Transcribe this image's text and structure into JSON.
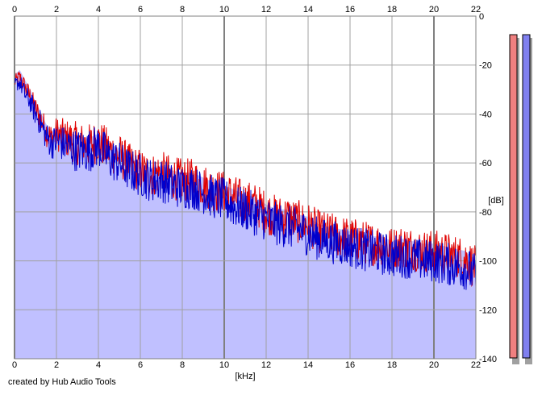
{
  "chart_data": {
    "type": "area",
    "xlabel": "[kHz]",
    "ylabel": "[dB]",
    "xlim": [
      0,
      22
    ],
    "ylim": [
      -140,
      0
    ],
    "x_ticks": [
      0,
      2,
      4,
      6,
      8,
      10,
      12,
      14,
      16,
      18,
      20,
      22
    ],
    "x_tick_labels": [
      "0",
      "2",
      "4",
      "6",
      "8",
      "10",
      "12",
      "14",
      "16",
      "18",
      "20",
      "22"
    ],
    "y_ticks": [
      0,
      -20,
      -40,
      -60,
      -80,
      -100,
      -120,
      -140
    ],
    "y_tick_labels": [
      "0",
      "-20",
      "-40",
      "-60",
      "-80",
      "-100",
      "-120",
      "-140"
    ],
    "grid": true,
    "x_tick_labels_top": true,
    "series": [
      {
        "color": "#e00000",
        "x": [
          0,
          0.25,
          0.5,
          0.75,
          1,
          1.25,
          1.5,
          1.75,
          2,
          2.5,
          3,
          3.5,
          4,
          4.5,
          5,
          5.5,
          6,
          6.5,
          7,
          7.5,
          8,
          8.5,
          9,
          9.5,
          10,
          10.5,
          11,
          11.5,
          12,
          12.5,
          13,
          13.5,
          14,
          14.5,
          15,
          15.5,
          16,
          16.5,
          17,
          17.5,
          18,
          18.5,
          19,
          19.5,
          20,
          20.5,
          21,
          21.5,
          22
        ],
        "values": [
          -27,
          -25,
          -29,
          -33,
          -38,
          -42,
          -47,
          -50,
          -48,
          -50,
          -52,
          -53,
          -51,
          -55,
          -57,
          -61,
          -63,
          -65,
          -64,
          -66,
          -67,
          -67,
          -69,
          -71,
          -72,
          -74,
          -76,
          -77,
          -80,
          -82,
          -82,
          -84,
          -85,
          -88,
          -89,
          -90,
          -91,
          -92,
          -93,
          -93,
          -95,
          -94,
          -95,
          -96,
          -96,
          -97,
          -98,
          -99,
          -103
        ]
      },
      {
        "color": "#0000cc",
        "x": [
          0,
          0.25,
          0.5,
          0.75,
          1,
          1.25,
          1.5,
          1.75,
          2,
          2.5,
          3,
          3.5,
          4,
          4.5,
          5,
          5.5,
          6,
          6.5,
          7,
          7.5,
          8,
          8.5,
          9,
          9.5,
          10,
          10.5,
          11,
          11.5,
          12,
          12.5,
          13,
          13.5,
          14,
          14.5,
          15,
          15.5,
          16,
          16.5,
          17,
          17.5,
          18,
          18.5,
          19,
          19.5,
          20,
          20.5,
          21,
          21.5,
          22
        ],
        "values": [
          -28,
          -27,
          -32,
          -35,
          -40,
          -44,
          -49,
          -52,
          -51,
          -53,
          -55,
          -55,
          -53,
          -58,
          -60,
          -63,
          -65,
          -67,
          -67,
          -69,
          -70,
          -70,
          -72,
          -74,
          -75,
          -78,
          -79,
          -81,
          -83,
          -85,
          -86,
          -87,
          -89,
          -91,
          -92,
          -93,
          -94,
          -95,
          -96,
          -97,
          -98,
          -98,
          -99,
          -100,
          -100,
          -101,
          -102,
          -103,
          -106
        ]
      }
    ],
    "area_fill_color": "#c0c0ff",
    "level_meters": [
      {
        "color": "#f08080"
      },
      {
        "color": "#8080f0"
      }
    ]
  },
  "footer": {
    "credit": "created by Hub Audio Tools"
  }
}
